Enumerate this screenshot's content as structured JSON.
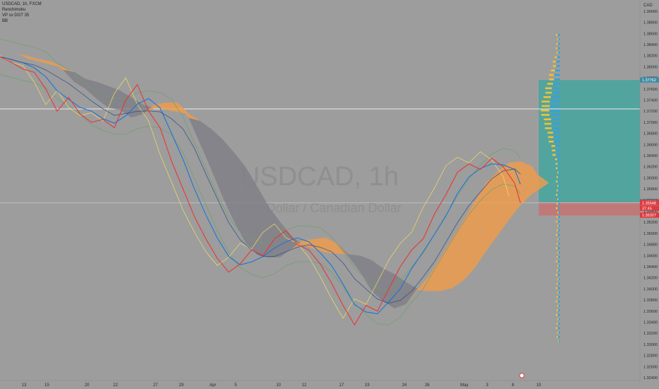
{
  "legend": {
    "symbol_line": "USDCAD, 1h, FXCM",
    "indicator_1": "Renchimoku",
    "indicator_2": "VP sv DGT 35",
    "indicator_3": "BB"
  },
  "watermark": {
    "symbol": "USDCAD, 1h",
    "description": "U.S. Dollar / Canadian Dollar"
  },
  "chart_data": {
    "type": "line",
    "title": "USDCAD, 1h",
    "subtitle": "U.S. Dollar / Canadian Dollar",
    "currency_label": "CAD",
    "y_ticks": [
      "1.39000",
      "1.38800",
      "1.38600",
      "1.38400",
      "1.38200",
      "1.38000",
      "1.37800",
      "1.37600",
      "1.37400",
      "1.37200",
      "1.37000",
      "1.36800",
      "1.36600",
      "1.36400",
      "1.36200",
      "1.36000",
      "1.35800",
      "1.35600",
      "1.35400",
      "1.35200",
      "1.35000",
      "1.34800",
      "1.34600",
      "1.34400",
      "1.34200",
      "1.34000",
      "1.33800",
      "1.33600",
      "1.33400",
      "1.33200",
      "1.33000",
      "1.32800",
      "1.32600",
      "1.32400"
    ],
    "ylim": [
      1.324,
      1.391
    ],
    "x_ticks": [
      "13",
      "15",
      "20",
      "22",
      "27",
      "29",
      "Apr",
      "5",
      "10",
      "12",
      "17",
      "19",
      "24",
      "26",
      "May",
      "3",
      "8",
      "10"
    ],
    "price_series": [
      {
        "x": 0,
        "y": 1.3818
      },
      {
        "x": 4,
        "y": 1.3808
      },
      {
        "x": 8,
        "y": 1.3796
      },
      {
        "x": 12,
        "y": 1.379
      },
      {
        "x": 16,
        "y": 1.376
      },
      {
        "x": 20,
        "y": 1.372
      },
      {
        "x": 24,
        "y": 1.3745
      },
      {
        "x": 28,
        "y": 1.3715
      },
      {
        "x": 32,
        "y": 1.37
      },
      {
        "x": 36,
        "y": 1.3705
      },
      {
        "x": 40,
        "y": 1.369
      },
      {
        "x": 44,
        "y": 1.374
      },
      {
        "x": 48,
        "y": 1.3768
      },
      {
        "x": 52,
        "y": 1.372
      },
      {
        "x": 56,
        "y": 1.369
      },
      {
        "x": 60,
        "y": 1.363
      },
      {
        "x": 64,
        "y": 1.358
      },
      {
        "x": 68,
        "y": 1.353
      },
      {
        "x": 72,
        "y": 1.349
      },
      {
        "x": 76,
        "y": 1.3455
      },
      {
        "x": 80,
        "y": 1.343
      },
      {
        "x": 84,
        "y": 1.3445
      },
      {
        "x": 88,
        "y": 1.347
      },
      {
        "x": 92,
        "y": 1.346
      },
      {
        "x": 96,
        "y": 1.349
      },
      {
        "x": 100,
        "y": 1.3505
      },
      {
        "x": 104,
        "y": 1.348
      },
      {
        "x": 108,
        "y": 1.347
      },
      {
        "x": 112,
        "y": 1.3445
      },
      {
        "x": 116,
        "y": 1.341
      },
      {
        "x": 120,
        "y": 1.337
      },
      {
        "x": 124,
        "y": 1.3335
      },
      {
        "x": 128,
        "y": 1.337
      },
      {
        "x": 132,
        "y": 1.336
      },
      {
        "x": 136,
        "y": 1.34
      },
      {
        "x": 140,
        "y": 1.344
      },
      {
        "x": 144,
        "y": 1.347
      },
      {
        "x": 148,
        "y": 1.349
      },
      {
        "x": 152,
        "y": 1.3535
      },
      {
        "x": 156,
        "y": 1.357
      },
      {
        "x": 160,
        "y": 1.361
      },
      {
        "x": 164,
        "y": 1.3625
      },
      {
        "x": 168,
        "y": 1.3615
      },
      {
        "x": 172,
        "y": 1.3635
      },
      {
        "x": 176,
        "y": 1.362
      },
      {
        "x": 180,
        "y": 1.359
      },
      {
        "x": 182,
        "y": 1.3555
      }
    ],
    "x_tick_positions": [
      0,
      8,
      22,
      32,
      46,
      55,
      66,
      74,
      89,
      98,
      111,
      120,
      133,
      141,
      154,
      162,
      171,
      180
    ],
    "horizontal_lines": [
      {
        "y": 1.3724,
        "color": "#ececec"
      },
      {
        "y": 1.3555,
        "color": "#bdbdbd"
      }
    ],
    "value_area_upper": 1.3776,
    "value_area_lower": 1.3532,
    "value_area_poc": 1.3556,
    "price_labels": [
      {
        "text": "1.37762",
        "value": 1.37762,
        "color": "#3a8aa8"
      },
      {
        "text": "1.35569",
        "value": 1.35569,
        "color": "#6a6a6a"
      },
      {
        "text": "1.35548",
        "value": 1.35548,
        "color": "#e0393e"
      },
      {
        "text": "37:45",
        "value": 1.3545,
        "color": "#e0393e"
      },
      {
        "text": "1.35327",
        "value": 1.35327,
        "color": "#e0393e"
      }
    ],
    "colors": {
      "background": "#9d9d9d",
      "price": "#e53935",
      "tenkan": "#1e74d3",
      "bb": "#f5e25c",
      "bb_mid": "#d6d6d6",
      "kumo_bull": "#f39c4a",
      "kumo_bear": "#7e7e86",
      "va_box": "#3aa7a0",
      "va_box_low": "#cc6e6e",
      "vp_up": "#3aa0d9",
      "vp_down": "#f1c232"
    }
  }
}
